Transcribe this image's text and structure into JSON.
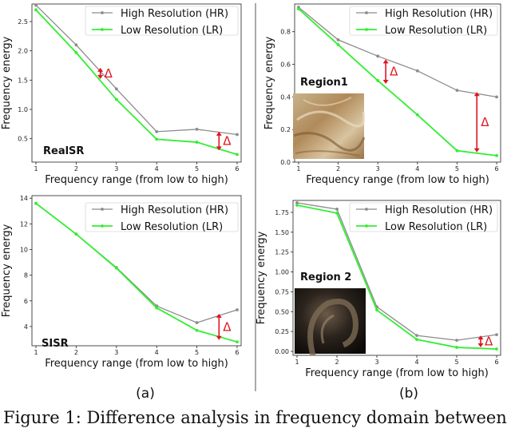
{
  "chart_data": [
    {
      "type": "line",
      "panel": "(a)",
      "annotation": "RealSR",
      "xlabel": "Frequency range (from low to high)",
      "ylabel": "Frequency energy",
      "x": [
        1,
        2,
        3,
        4,
        5,
        6
      ],
      "xticks": [
        "1",
        "2",
        "3",
        "4",
        "5",
        "6"
      ],
      "ylim": [
        0.1,
        2.8
      ],
      "yticks": [
        0.5,
        1.0,
        1.5,
        2.0,
        2.5
      ],
      "ytick_labels": [
        "0.5",
        "1.0",
        "1.5",
        "2.0",
        "2.5"
      ],
      "series": [
        {
          "name": "High Resolution (HR)",
          "color": "#8c8c8c",
          "values": [
            2.78,
            2.1,
            1.35,
            0.62,
            0.66,
            0.57
          ]
        },
        {
          "name": "Low  Resolution (LR)",
          "color": "#33ee33",
          "values": [
            2.7,
            1.97,
            1.17,
            0.49,
            0.44,
            0.23
          ]
        }
      ],
      "deltas": [
        {
          "x": 2.6,
          "y_top": 1.71,
          "y_bottom": 1.52,
          "label": "Δ"
        },
        {
          "x": 5.55,
          "y_top": 0.62,
          "y_bottom": 0.3,
          "label": "Δ"
        }
      ],
      "legend": "top-right"
    },
    {
      "type": "line",
      "panel": "(b)",
      "annotation": "Region1",
      "xlabel": "Frequency range (from low to high)",
      "ylabel": "Frequency energy",
      "x": [
        1,
        2,
        3,
        4,
        5,
        6
      ],
      "xticks": [
        "1",
        "2",
        "3",
        "4",
        "5",
        "6"
      ],
      "ylim": [
        0.0,
        0.97
      ],
      "yticks": [
        0.0,
        0.2,
        0.4,
        0.6,
        0.8
      ],
      "ytick_labels": [
        "0.0",
        "0.2",
        "0.4",
        "0.6",
        "0.8"
      ],
      "series": [
        {
          "name": "High Resolution (HR)",
          "color": "#8c8c8c",
          "values": [
            0.95,
            0.75,
            0.65,
            0.56,
            0.44,
            0.4
          ]
        },
        {
          "name": "Low  Resolution (LR)",
          "color": "#33ee33",
          "values": [
            0.94,
            0.72,
            0.5,
            0.29,
            0.07,
            0.04
          ]
        }
      ],
      "deltas": [
        {
          "x": 3.2,
          "y_top": 0.63,
          "y_bottom": 0.48,
          "label": "Δ"
        },
        {
          "x": 5.5,
          "y_top": 0.43,
          "y_bottom": 0.06,
          "label": "Δ"
        }
      ],
      "legend": "top-right"
    },
    {
      "type": "line",
      "panel": "(a)",
      "annotation": "SISR",
      "xlabel": "Frequency range (from low to high)",
      "ylabel": "Frequency energy",
      "x": [
        1,
        2,
        3,
        4,
        5,
        6
      ],
      "xticks": [
        "1",
        "2",
        "3",
        "4",
        "5",
        "6"
      ],
      "ylim": [
        2.5,
        14.2
      ],
      "yticks": [
        4,
        6,
        8,
        10,
        12,
        14
      ],
      "ytick_labels": [
        "4",
        "6",
        "8",
        "10",
        "12",
        "14"
      ],
      "series": [
        {
          "name": "High Resolution (HR)",
          "color": "#8c8c8c",
          "values": [
            13.6,
            11.2,
            8.6,
            5.6,
            4.3,
            5.3
          ]
        },
        {
          "name": "Low  Resolution (LR)",
          "color": "#33ee33",
          "values": [
            13.6,
            11.2,
            8.55,
            5.45,
            3.7,
            2.8
          ]
        }
      ],
      "deltas": [
        {
          "x": 5.55,
          "y_top": 5.0,
          "y_bottom": 2.95,
          "label": "Δ"
        }
      ],
      "legend": "top-right"
    },
    {
      "type": "line",
      "panel": "(b)",
      "annotation": "Region 2",
      "xlabel": "Frequency range (from low to high)",
      "ylabel": "Frequency energy",
      "x": [
        1,
        2,
        3,
        4,
        5,
        6
      ],
      "xticks": [
        "1",
        "2",
        "3",
        "4",
        "5",
        "6"
      ],
      "ylim": [
        -0.05,
        1.9
      ],
      "yticks": [
        0.0,
        0.25,
        0.5,
        0.75,
        1.0,
        1.25,
        1.5,
        1.75
      ],
      "ytick_labels": [
        "0.00",
        "0.25",
        "0.50",
        "0.75",
        "1.00",
        "1.25",
        "1.50",
        "1.75"
      ],
      "series": [
        {
          "name": "High Resolution (HR)",
          "color": "#8c8c8c",
          "values": [
            1.87,
            1.79,
            0.56,
            0.2,
            0.14,
            0.21
          ]
        },
        {
          "name": "Low  Resolution (LR)",
          "color": "#33ee33",
          "values": [
            1.84,
            1.74,
            0.52,
            0.15,
            0.05,
            0.03
          ]
        }
      ],
      "deltas": [
        {
          "x": 5.6,
          "y_top": 0.2,
          "y_bottom": 0.05,
          "label": "Δ"
        }
      ],
      "legend": "top-right"
    }
  ],
  "panel_labels": [
    "(a)",
    "(b)"
  ],
  "caption": "Figure 1: Difference analysis in frequency domain between",
  "colors": {
    "hr": "#8c8c8c",
    "lr": "#33ee33",
    "delta": "#e0141e"
  }
}
